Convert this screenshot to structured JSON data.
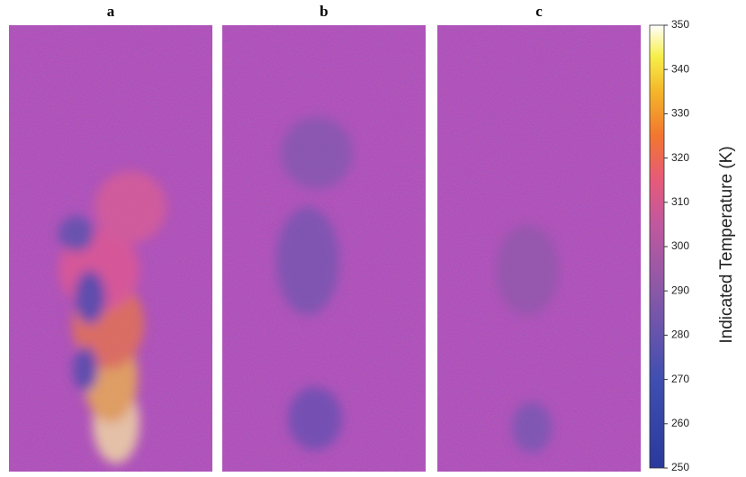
{
  "chart_data": {
    "type": "heatmap",
    "panels": [
      {
        "title": "a"
      },
      {
        "title": "b"
      },
      {
        "title": "c"
      }
    ],
    "colorbar": {
      "label": "Indicated Temperature (K)",
      "ylim": [
        250,
        350
      ],
      "yticks": [
        250,
        260,
        270,
        280,
        290,
        300,
        310,
        320,
        330,
        340,
        350
      ]
    }
  }
}
